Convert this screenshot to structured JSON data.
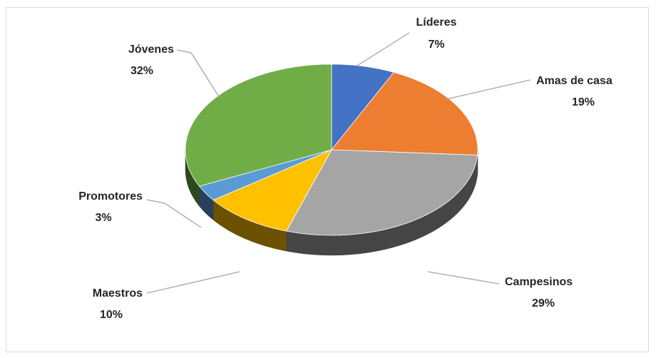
{
  "chart_data": {
    "type": "pie",
    "title": "",
    "legend": "none",
    "style": "3d",
    "slices": [
      {
        "label": "Líderes",
        "value": 7,
        "value_text": "7%",
        "color": "#4472C4"
      },
      {
        "label": "Amas de casa",
        "value": 19,
        "value_text": "19%",
        "color": "#ED7D31"
      },
      {
        "label": "Campesinos",
        "value": 29,
        "value_text": "29%",
        "color": "#A5A5A5"
      },
      {
        "label": "Maestros",
        "value": 10,
        "value_text": "10%",
        "color": "#FFC000"
      },
      {
        "label": "Promotores",
        "value": 3,
        "value_text": "3%",
        "color": "#5B9BD5"
      },
      {
        "label": "Jóvenes",
        "value": 32,
        "value_text": "32%",
        "color": "#70AD47"
      }
    ]
  }
}
